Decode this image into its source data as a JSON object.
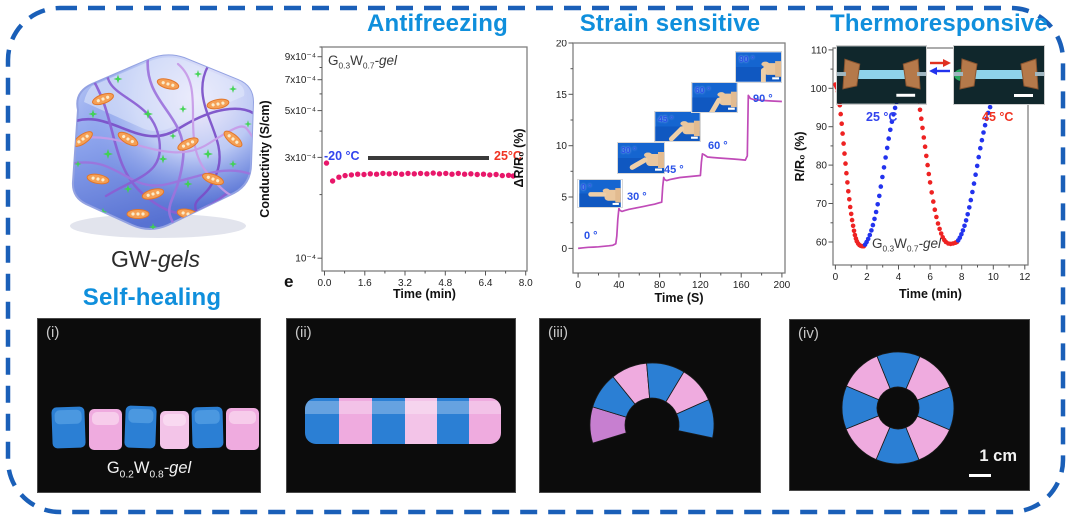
{
  "sections": {
    "antifreezing": "Antifreezing",
    "strain": "Strain sensitive",
    "thermo": "Thermoresponsive",
    "self_healing": "Self-healing"
  },
  "illustration": {
    "label_prefix": "GW-",
    "label_italic": "gels"
  },
  "colors": {
    "title_blue": "#0f8fdc",
    "border_blue": "#1a5fb8",
    "antifreeze_dots": "#e8176a",
    "strain_curve": "#c04bb8",
    "thermo_red": "#ee2222",
    "thermo_blue": "#2233ee",
    "gel_blue": "#2b7fd4",
    "gel_pink": "#efabdf",
    "gel_pink_light": "#f3c4e8",
    "gel_purple": "#c77fd0"
  },
  "chart_data": [
    {
      "id": "antifreeze",
      "type": "scatter",
      "title": "Antifreezing",
      "panel_letter": "e",
      "xlabel": "Time (min)",
      "ylabel": "Conductivity (S/cm)",
      "xlim": [
        -0.1,
        8.05
      ],
      "ylim": [
        8.7e-05,
        0.001
      ],
      "ylog": true,
      "xticks": [
        [
          0,
          "0.0"
        ],
        [
          1.6,
          "1.6"
        ],
        [
          3.2,
          "3.2"
        ],
        [
          4.8,
          "4.8"
        ],
        [
          6.4,
          "6.4"
        ],
        [
          8,
          "8.0"
        ]
      ],
      "yticks": [
        [
          0.0009,
          "9x10⁻⁴"
        ],
        [
          0.0007,
          "7x10⁻⁴"
        ],
        [
          0.0005,
          "5x10⁻⁴"
        ],
        [
          0.0003,
          "3x10⁻⁴"
        ],
        [
          0.0001,
          "10⁻⁴"
        ]
      ],
      "xminor": [
        0.8,
        2.4,
        4.0,
        5.6,
        7.2
      ],
      "yminor": [
        0.0002,
        0.0004,
        0.0006,
        0.0008,
        0.001
      ],
      "series": [
        {
          "name": "conductivity",
          "color": "#e8176a",
          "marker": 2.7,
          "points": [
            [
              0.08,
              0.000282
            ],
            [
              0.32,
              0.000232
            ],
            [
              0.57,
              0.000242
            ],
            [
              0.82,
              0.000246
            ],
            [
              1.07,
              0.000248
            ],
            [
              1.32,
              0.00025
            ],
            [
              1.57,
              0.000249
            ],
            [
              1.82,
              0.000251
            ],
            [
              2.07,
              0.00025
            ],
            [
              2.32,
              0.000252
            ],
            [
              2.57,
              0.000251
            ],
            [
              2.82,
              0.000252
            ],
            [
              3.07,
              0.00025
            ],
            [
              3.32,
              0.000252
            ],
            [
              3.57,
              0.000251
            ],
            [
              3.82,
              0.000252
            ],
            [
              4.07,
              0.000251
            ],
            [
              4.32,
              0.000253
            ],
            [
              4.57,
              0.000251
            ],
            [
              4.82,
              0.000252
            ],
            [
              5.07,
              0.00025
            ],
            [
              5.32,
              0.000252
            ],
            [
              5.57,
              0.00025
            ],
            [
              5.82,
              0.000251
            ],
            [
              6.07,
              0.000249
            ],
            [
              6.32,
              0.00025
            ],
            [
              6.57,
              0.000248
            ],
            [
              6.82,
              0.000249
            ],
            [
              7.07,
              0.000246
            ],
            [
              7.32,
              0.000247
            ],
            [
              7.5,
              0.000245
            ]
          ]
        }
      ],
      "annotations": {
        "gel_label": {
          "g": "G",
          "gsub": "0.3",
          "w": "W",
          "wsub": "0.7",
          "suffix": "-gel"
        },
        "temp_left": "-20 °C",
        "temp_right": "25°C"
      }
    },
    {
      "id": "strain",
      "type": "line",
      "title": "Strain sensitive",
      "xlabel": "Time (S)",
      "ylabel": "ΔR/R₀ (%)",
      "xlim": [
        -5,
        203
      ],
      "ylim": [
        -2.4,
        20
      ],
      "xticks": [
        [
          0,
          "0"
        ],
        [
          40,
          "40"
        ],
        [
          80,
          "80"
        ],
        [
          120,
          "120"
        ],
        [
          160,
          "160"
        ],
        [
          200,
          "200"
        ]
      ],
      "yticks": [
        [
          0,
          "0"
        ],
        [
          5,
          "5"
        ],
        [
          10,
          "10"
        ],
        [
          15,
          "15"
        ],
        [
          20,
          "20"
        ]
      ],
      "xminor": [
        20,
        60,
        100,
        140,
        180
      ],
      "yminor": [
        2.5,
        7.5,
        12.5,
        17.5
      ],
      "series": [
        {
          "name": "resistance-change",
          "color": "#c04bb8",
          "width": 1.7,
          "points": [
            [
              0,
              0
            ],
            [
              5,
              0.05
            ],
            [
              10,
              0.1
            ],
            [
              15,
              0.12
            ],
            [
              20,
              0.15
            ],
            [
              25,
              0.2
            ],
            [
              30,
              0.25
            ],
            [
              34,
              0.3
            ],
            [
              37,
              0.45
            ],
            [
              38,
              1.2
            ],
            [
              39,
              2.8
            ],
            [
              40,
              3.9
            ],
            [
              41,
              3.7
            ],
            [
              43,
              3.6
            ],
            [
              46,
              3.7
            ],
            [
              50,
              3.8
            ],
            [
              55,
              3.9
            ],
            [
              60,
              4.0
            ],
            [
              65,
              4.1
            ],
            [
              70,
              4.2
            ],
            [
              75,
              4.3
            ],
            [
              80,
              4.45
            ],
            [
              82,
              4.5
            ],
            [
              83,
              6.0
            ],
            [
              84,
              6.9
            ],
            [
              85,
              6.7
            ],
            [
              87,
              6.6
            ],
            [
              90,
              6.7
            ],
            [
              95,
              6.8
            ],
            [
              100,
              6.9
            ],
            [
              105,
              6.95
            ],
            [
              110,
              7.0
            ],
            [
              115,
              7.05
            ],
            [
              120,
              7.1
            ],
            [
              121,
              8.4
            ],
            [
              122,
              9.2
            ],
            [
              124,
              9.1
            ],
            [
              127,
              8.9
            ],
            [
              132,
              8.85
            ],
            [
              138,
              8.8
            ],
            [
              145,
              8.75
            ],
            [
              152,
              8.7
            ],
            [
              158,
              8.65
            ],
            [
              164,
              8.6
            ],
            [
              166,
              9.0
            ],
            [
              167,
              14.9
            ],
            [
              169,
              14.6
            ],
            [
              172,
              14.5
            ],
            [
              176,
              14.45
            ],
            [
              182,
              14.4
            ],
            [
              190,
              14.35
            ],
            [
              200,
              14.3
            ]
          ]
        }
      ],
      "annotations": {
        "angles": [
          "0 °",
          "30 °",
          "45 °",
          "60 °",
          "90 °"
        ]
      }
    },
    {
      "id": "thermoresponsive",
      "type": "scatter",
      "title": "Thermoresponsive",
      "xlabel": "Time (min)",
      "ylabel": "R/R₀ (%)",
      "xlim": [
        -0.15,
        12.2
      ],
      "ylim": [
        54,
        110.5
      ],
      "xticks": [
        [
          0,
          "0"
        ],
        [
          2,
          "2"
        ],
        [
          4,
          "4"
        ],
        [
          6,
          "6"
        ],
        [
          8,
          "8"
        ],
        [
          10,
          "10"
        ],
        [
          12,
          "12"
        ]
      ],
      "yticks": [
        [
          60,
          "60"
        ],
        [
          70,
          "70"
        ],
        [
          80,
          "80"
        ],
        [
          90,
          "90"
        ],
        [
          100,
          "100"
        ],
        [
          110,
          "110"
        ]
      ],
      "xminor": [
        1,
        3,
        5,
        7,
        9,
        11
      ],
      "yminor": [
        65,
        75,
        85,
        95,
        105
      ],
      "series": [
        {
          "name": "at-45C-cycle1",
          "color": "#ee2222",
          "marker": 2.3,
          "points": [
            [
              0,
              101
            ],
            [
              0.05,
              100.6
            ],
            [
              0.1,
              100.2
            ],
            [
              0.16,
              99.2
            ],
            [
              0.22,
              97.6
            ],
            [
              0.28,
              95.6
            ],
            [
              0.34,
              93.3
            ],
            [
              0.4,
              90.8
            ],
            [
              0.46,
              88.2
            ],
            [
              0.52,
              85.6
            ],
            [
              0.58,
              83
            ],
            [
              0.64,
              80.4
            ],
            [
              0.7,
              77.9
            ],
            [
              0.76,
              75.5
            ],
            [
              0.82,
              73.2
            ],
            [
              0.88,
              71.1
            ],
            [
              0.94,
              69.1
            ],
            [
              1.0,
              67.3
            ],
            [
              1.06,
              65.7
            ],
            [
              1.12,
              64.2
            ],
            [
              1.18,
              62.9
            ],
            [
              1.24,
              61.8
            ],
            [
              1.3,
              60.9
            ],
            [
              1.36,
              60.2
            ],
            [
              1.44,
              59.6
            ],
            [
              1.52,
              59.2
            ],
            [
              1.6,
              59
            ],
            [
              1.7,
              58.9
            ],
            [
              1.8,
              58.9
            ]
          ]
        },
        {
          "name": "at-25C-cycle1",
          "color": "#2233ee",
          "marker": 2.3,
          "points": [
            [
              1.88,
              59.3
            ],
            [
              1.98,
              60
            ],
            [
              2.08,
              60.8
            ],
            [
              2.18,
              61.8
            ],
            [
              2.28,
              63
            ],
            [
              2.38,
              64.4
            ],
            [
              2.48,
              66
            ],
            [
              2.58,
              67.8
            ],
            [
              2.68,
              69.8
            ],
            [
              2.78,
              72
            ],
            [
              2.88,
              74.4
            ],
            [
              2.98,
              76.9
            ],
            [
              3.08,
              79.4
            ],
            [
              3.18,
              82
            ],
            [
              3.28,
              84.5
            ],
            [
              3.38,
              86.9
            ],
            [
              3.48,
              89.2
            ],
            [
              3.58,
              91.3
            ],
            [
              3.68,
              93.2
            ],
            [
              3.78,
              94.9
            ],
            [
              3.88,
              96.4
            ],
            [
              3.98,
              97.7
            ],
            [
              4.1,
              98.9
            ],
            [
              4.22,
              99.8
            ],
            [
              4.35,
              100.5
            ],
            [
              4.5,
              101
            ],
            [
              4.65,
              101.3
            ],
            [
              4.8,
              101.5
            ],
            [
              4.95,
              101.6
            ]
          ]
        },
        {
          "name": "at-45C-cycle2",
          "color": "#ee2222",
          "marker": 2.3,
          "points": [
            [
              5.0,
              102
            ],
            [
              5.06,
              101.2
            ],
            [
              5.12,
              100.2
            ],
            [
              5.2,
              98.6
            ],
            [
              5.28,
              96.6
            ],
            [
              5.36,
              94.4
            ],
            [
              5.44,
              92.1
            ],
            [
              5.52,
              89.7
            ],
            [
              5.6,
              87.2
            ],
            [
              5.68,
              84.8
            ],
            [
              5.76,
              82.4
            ],
            [
              5.84,
              80
            ],
            [
              5.92,
              77.7
            ],
            [
              6.0,
              75.5
            ],
            [
              6.1,
              72.9
            ],
            [
              6.2,
              70.5
            ],
            [
              6.3,
              68.4
            ],
            [
              6.4,
              66.5
            ],
            [
              6.5,
              64.8
            ],
            [
              6.6,
              63.4
            ],
            [
              6.7,
              62.2
            ],
            [
              6.8,
              61.2
            ],
            [
              6.9,
              60.5
            ],
            [
              7.0,
              60
            ],
            [
              7.15,
              59.6
            ],
            [
              7.3,
              59.5
            ],
            [
              7.45,
              59.6
            ],
            [
              7.6,
              59.8
            ],
            [
              7.7,
              60
            ]
          ]
        },
        {
          "name": "at-25C-cycle2",
          "color": "#2233ee",
          "marker": 2.3,
          "points": [
            [
              7.78,
              60.4
            ],
            [
              7.88,
              61.1
            ],
            [
              7.98,
              62
            ],
            [
              8.08,
              63
            ],
            [
              8.18,
              64.2
            ],
            [
              8.28,
              65.6
            ],
            [
              8.38,
              67.2
            ],
            [
              8.48,
              69
            ],
            [
              8.58,
              70.9
            ],
            [
              8.68,
              73
            ],
            [
              8.78,
              75.2
            ],
            [
              8.88,
              77.5
            ],
            [
              8.98,
              79.8
            ],
            [
              9.08,
              82.1
            ],
            [
              9.18,
              84.4
            ],
            [
              9.28,
              86.5
            ],
            [
              9.38,
              88.5
            ],
            [
              9.48,
              90.4
            ],
            [
              9.58,
              92.1
            ],
            [
              9.68,
              93.6
            ],
            [
              9.8,
              95.1
            ],
            [
              9.92,
              96.3
            ],
            [
              10.05,
              97.3
            ],
            [
              10.2,
              98.2
            ],
            [
              10.35,
              98.9
            ],
            [
              10.5,
              99.4
            ],
            [
              10.7,
              99.8
            ],
            [
              10.9,
              100
            ],
            [
              11.1,
              100.1
            ]
          ]
        }
      ],
      "annotations": {
        "temp_cold": "25 °C",
        "temp_hot": "45 °C",
        "gel_label": {
          "g": "G",
          "gsub": "0.3",
          "w": "W",
          "wsub": "0.7",
          "suffix": "-gel"
        }
      }
    }
  ],
  "photos": {
    "i": {
      "tag": "(i)",
      "gel_label": {
        "g": "G",
        "gsub": "0.2",
        "w": "W",
        "wsub": "0.8",
        "suffix": "-gel"
      }
    },
    "ii": {
      "tag": "(ii)"
    },
    "iii": {
      "tag": "(iii)"
    },
    "iv": {
      "tag": "(iv)",
      "scale_label": "1 cm"
    }
  }
}
